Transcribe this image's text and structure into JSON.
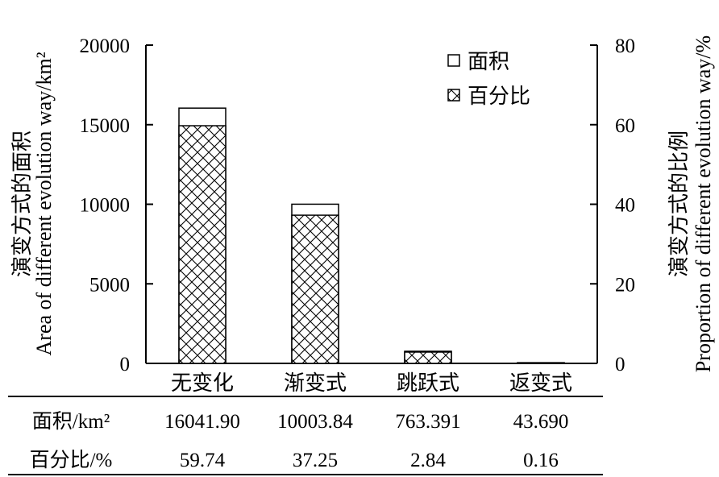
{
  "chart_data": {
    "type": "bar",
    "categories": [
      "无变化",
      "渐变式",
      "跳跃式",
      "返变式"
    ],
    "series": [
      {
        "name": "面积",
        "axis": "left",
        "pattern": "none",
        "values": [
          16041.9,
          10003.84,
          763.391,
          43.69
        ]
      },
      {
        "name": "百分比",
        "axis": "right",
        "pattern": "crosshatch",
        "values": [
          59.74,
          37.25,
          2.84,
          0.16
        ]
      }
    ],
    "ylabel_left_cn": "演变方式的面积",
    "ylabel_left_en": "Area of different evolution way/km²",
    "ylabel_right_cn": "演变方式的比例",
    "ylabel_right_en": "Proportion of different evolution way/%",
    "ylim_left": [
      0,
      20000
    ],
    "ylim_right": [
      0,
      80
    ],
    "yticks_left": [
      "0",
      "5000",
      "10000",
      "15000",
      "20000"
    ],
    "yticks_right": [
      "0",
      "20",
      "40",
      "60",
      "80"
    ],
    "legend": [
      "面积",
      "百分比"
    ],
    "legend_position": "top-right",
    "grid": false
  },
  "table": {
    "rows": [
      {
        "label": "面积/km²",
        "values": [
          "16041.90",
          "10003.84",
          "763.391",
          "43.690"
        ]
      },
      {
        "label": "百分比/%",
        "values": [
          "59.74",
          "37.25",
          "2.84",
          "0.16"
        ]
      }
    ]
  },
  "colors": {
    "bar_fill": "#ffffff",
    "stroke": "#000000"
  }
}
